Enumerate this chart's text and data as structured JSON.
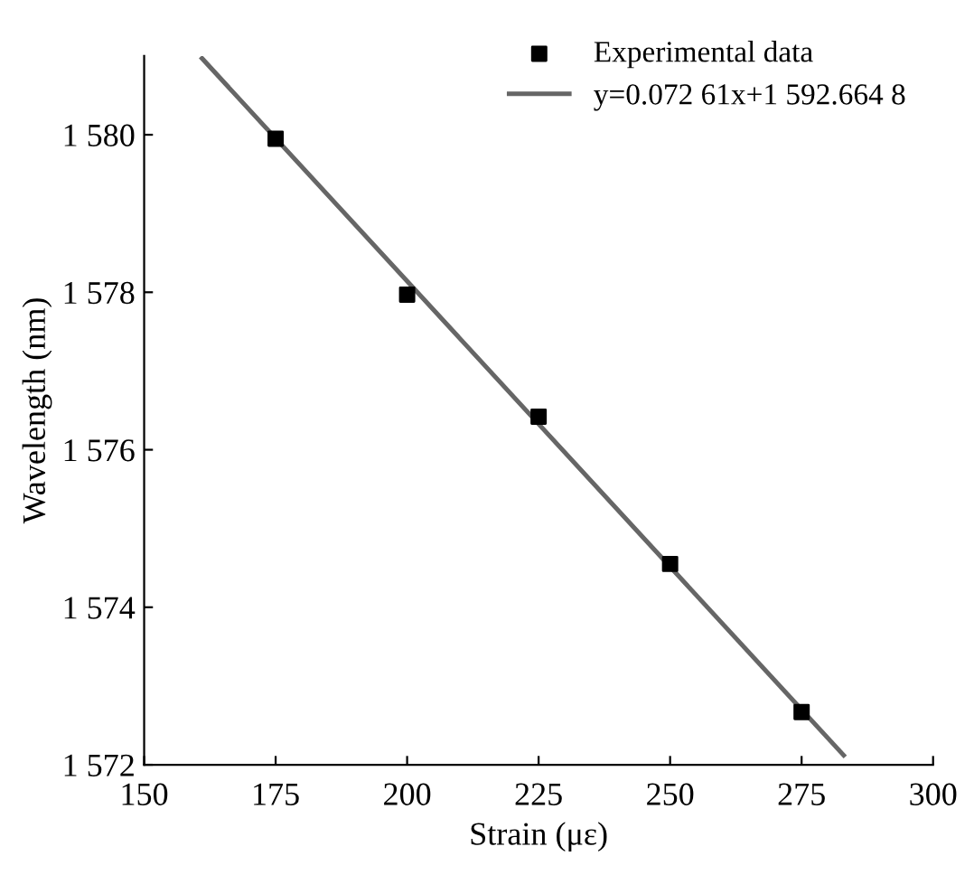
{
  "chart_data": {
    "type": "scatter",
    "xlabel": "Strain (με)",
    "ylabel": "Wavelength (nm)",
    "xlim": [
      150,
      300
    ],
    "xticks": [
      150,
      175,
      200,
      225,
      250,
      275,
      300
    ],
    "ylim": [
      1572,
      1581
    ],
    "yticks": [
      {
        "value": 1572,
        "label": "1 572"
      },
      {
        "value": 1574,
        "label": "1 574"
      },
      {
        "value": 1576,
        "label": "1 576"
      },
      {
        "value": 1578,
        "label": "1 578"
      },
      {
        "value": 1580,
        "label": "1 580"
      }
    ],
    "series": [
      {
        "name": "Experimental data",
        "marker": "square",
        "color": "#000000",
        "x": [
          175,
          200,
          225,
          250,
          275
        ],
        "values": [
          1579.95,
          1577.97,
          1576.42,
          1574.55,
          1572.67
        ]
      },
      {
        "name": "y=0.072 61x+1 592.664 8",
        "type": "line",
        "marker": "none",
        "color": "#666666",
        "x": [
          161,
          283
        ],
        "values": [
          1580.97,
          1572.12
        ]
      }
    ],
    "grid": false,
    "legend": "top right"
  }
}
